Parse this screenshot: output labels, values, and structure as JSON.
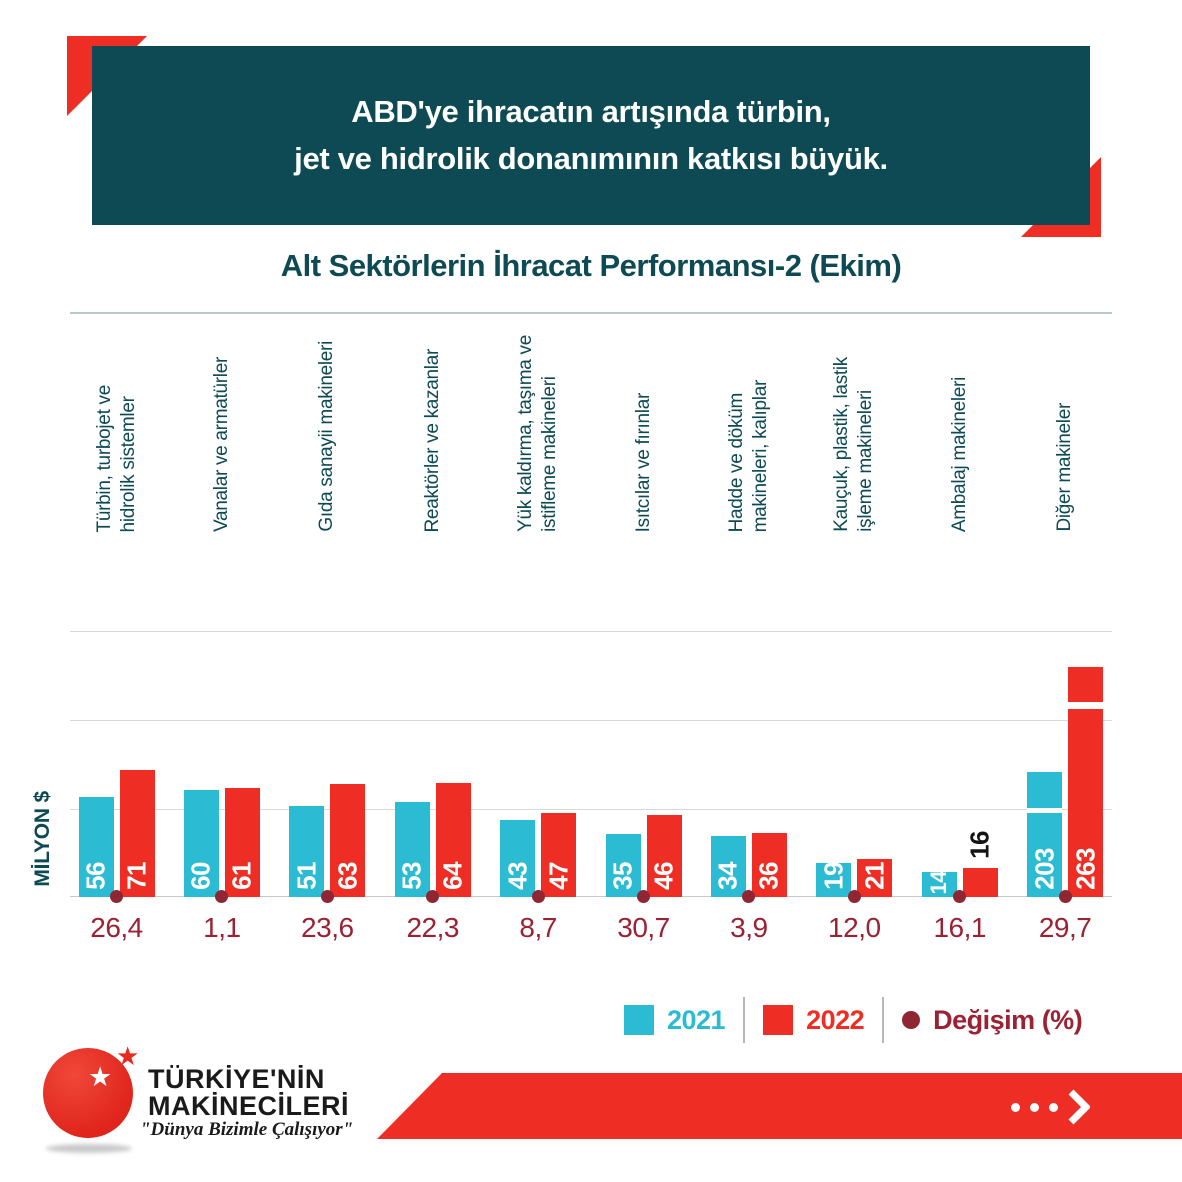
{
  "banner": {
    "line1": "ABD'ye ihracatın artışında türbin,",
    "line2": "jet ve hidrolik donanımının katkısı büyük."
  },
  "chart_title": "Alt Sektörlerin İhracat Performansı-2 (Ekim)",
  "chart_data": {
    "type": "bar",
    "title": "Alt Sektörlerin İhracat Performansı-2 (Ekim)",
    "ylabel": "MİLYON $",
    "ylim": [
      0,
      150
    ],
    "grid_on": true,
    "legend_position": "bottom",
    "axis_break_note": "bars for Diğer makineler (203/263) are drawn with a break",
    "categories": [
      "Türbin, turbojet ve\nhidrolik sistemler",
      "Vanalar ve armatürler",
      "Gıda sanayii makineleri",
      "Reaktörler ve kazanlar",
      "Yük kaldırma, taşıma ve\nistifleme makineleri",
      "Isıtcılar ve fırınlar",
      "Hadde ve döküm\nmakineleri, kalıplar",
      "Kauçuk, plastik, lastik\nişleme makineleri",
      "Ambalaj makineleri",
      "Diğer makineler"
    ],
    "series": [
      {
        "name": "2021",
        "color": "#2bbcd4",
        "values": [
          56,
          60,
          51,
          53,
          43,
          35,
          34,
          19,
          14,
          203
        ]
      },
      {
        "name": "2022",
        "color": "#ee2e24",
        "values": [
          71,
          61,
          63,
          64,
          47,
          46,
          36,
          21,
          16,
          263
        ]
      }
    ],
    "changes": {
      "name": "Değişim (%)",
      "color": "#9b2133",
      "values": [
        "26,4",
        "1,1",
        "23,6",
        "22,3",
        "8,7",
        "30,7",
        "3,9",
        "12,0",
        "16,1",
        "29,7"
      ]
    }
  },
  "legend": {
    "items": [
      {
        "label": "2021",
        "color": "#2bbcd4"
      },
      {
        "label": "2022",
        "color": "#ee2e24"
      },
      {
        "label": "Değişim (%)",
        "color": "#8e2733"
      }
    ]
  },
  "footer": {
    "brand_line1": "TÜRKİYE'NİN",
    "brand_line2": "MAKİNECİLERİ",
    "slogan": "\"Dünya Bizimle Çalışıyor\"",
    "cta_icon": "dots-arrow-icon"
  },
  "colors": {
    "banner_teal": "#0d4a53",
    "accent_red": "#ee2e24",
    "accent_cyan": "#2bbcd4",
    "maroon": "#8e2733",
    "gridline": "#d9d9d9"
  }
}
